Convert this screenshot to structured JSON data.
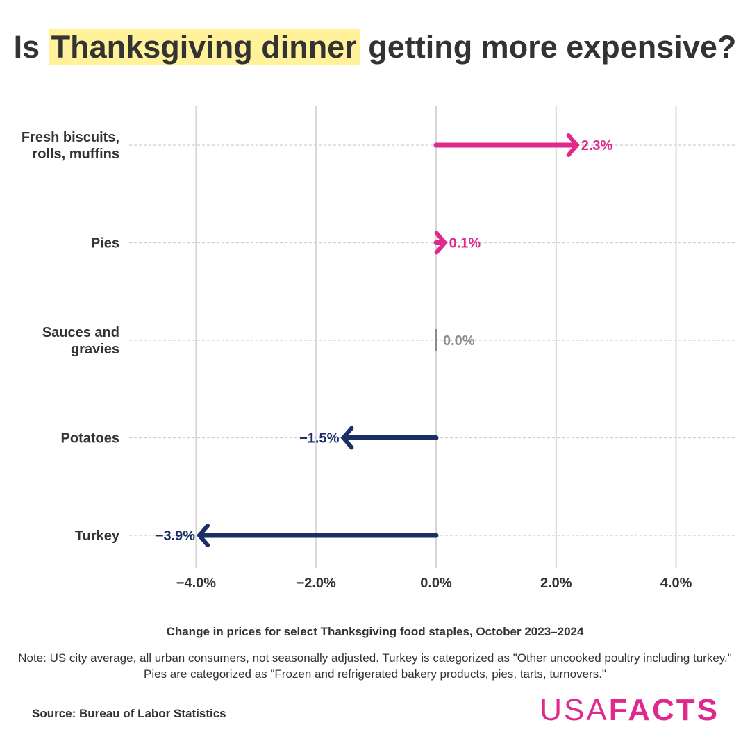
{
  "title": {
    "before": "Is ",
    "highlight": "Thanksgiving dinner",
    "after": " getting more expensive?"
  },
  "chart_data": {
    "type": "bar",
    "title": "Is Thanksgiving dinner getting more expensive?",
    "xlabel": "Change in prices for select Thanksgiving food staples, October 2023–2024",
    "ylabel": "",
    "xlim": [
      -5.0,
      5.0
    ],
    "xticks": [
      -4.0,
      -2.0,
      0.0,
      2.0,
      4.0
    ],
    "xtick_labels": [
      "−4.0%",
      "−2.0%",
      "0.0%",
      "2.0%",
      "4.0%"
    ],
    "categories": [
      [
        "Fresh biscuits,",
        "rolls, muffins"
      ],
      [
        "Pies"
      ],
      [
        "Sauces and",
        "gravies"
      ],
      [
        "Potatoes"
      ],
      [
        "Turkey"
      ]
    ],
    "values": [
      2.3,
      0.1,
      0.0,
      -1.5,
      -3.9
    ],
    "value_labels": [
      "2.3%",
      "0.1%",
      "0.0%",
      "−1.5%",
      "−3.9%"
    ],
    "colors": {
      "positive": "#e0298d",
      "zero": "#8c8c8c",
      "negative": "#1b2f66"
    },
    "grid": true
  },
  "subtitle": "Change in prices for select Thanksgiving food staples, October 2023–2024",
  "note": "Note: US city average, all urban consumers, not seasonally adjusted. Turkey is categorized as \"Other uncooked poultry including turkey.\" Pies are categorized as \"Frozen and refrigerated bakery products, pies, tarts, turnovers.\"",
  "source": "Source: Bureau of Labor Statistics",
  "logo": {
    "part1": "USA",
    "part2": "FACTS"
  }
}
